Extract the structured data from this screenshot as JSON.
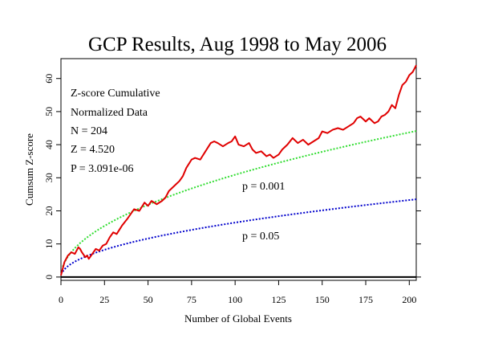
{
  "chart_data": {
    "type": "line",
    "title": "GCP Results, Aug 1998 to May 2006",
    "xlabel": "Number of Global Events",
    "ylabel": "Cumsum Z-score",
    "xlim": [
      0,
      204
    ],
    "ylim": [
      -1,
      66
    ],
    "xticks": [
      0,
      25,
      50,
      75,
      100,
      125,
      150,
      175,
      200
    ],
    "yticks": [
      0,
      10,
      20,
      30,
      40,
      50,
      60
    ],
    "stats": {
      "line1": "Z-score Cumulative",
      "line2": "Normalized Data",
      "line3": "N = 204",
      "line4": "Z = 4.520",
      "line5": "P = 3.091e-06"
    },
    "series": [
      {
        "name": "Z-score Cumulative",
        "color": "#e00000",
        "style": "solid",
        "x": [
          0,
          2,
          4,
          6,
          8,
          9,
          10,
          11,
          12,
          14,
          15,
          16,
          18,
          20,
          22,
          24,
          26,
          28,
          30,
          32,
          35,
          38,
          40,
          42,
          45,
          48,
          50,
          52,
          55,
          58,
          60,
          62,
          64,
          66,
          68,
          70,
          72,
          75,
          77,
          80,
          83,
          86,
          88,
          90,
          93,
          96,
          98,
          100,
          102,
          105,
          108,
          110,
          112,
          115,
          118,
          120,
          122,
          125,
          127,
          130,
          133,
          136,
          139,
          142,
          145,
          148,
          150,
          153,
          156,
          159,
          162,
          165,
          168,
          170,
          172,
          175,
          177,
          180,
          182,
          184,
          186,
          188,
          190,
          192,
          194,
          196,
          198,
          200,
          202,
          204
        ],
        "values": [
          0.5,
          4.5,
          6.5,
          7.5,
          7,
          8,
          9,
          8.5,
          7.5,
          6,
          6.5,
          5.5,
          7,
          8.5,
          8,
          9.5,
          10,
          12,
          13.5,
          13,
          15.5,
          17.5,
          19,
          20.5,
          20,
          22.5,
          21.5,
          23,
          22,
          23,
          24,
          26,
          27,
          28,
          29,
          30.5,
          33,
          35.5,
          36,
          35.5,
          38,
          40.5,
          41,
          40.5,
          39.5,
          40.5,
          41,
          42.5,
          40,
          39.5,
          40.5,
          38.5,
          37.5,
          38,
          36.5,
          37,
          36,
          37,
          38.5,
          40,
          42,
          40.5,
          41.5,
          40,
          41,
          42,
          44,
          43.5,
          44.5,
          45,
          44.5,
          45.5,
          46.5,
          48,
          48.5,
          47,
          48,
          46.5,
          47,
          48.5,
          49,
          50,
          52,
          51,
          55,
          58,
          59,
          61,
          62,
          64
        ]
      },
      {
        "name": "p = 0.001",
        "color": "#33dd33",
        "style": "dotted",
        "z": 3.09
      },
      {
        "name": "p = 0.05",
        "color": "#0000cc",
        "style": "dotted",
        "z": 1.645
      }
    ]
  }
}
